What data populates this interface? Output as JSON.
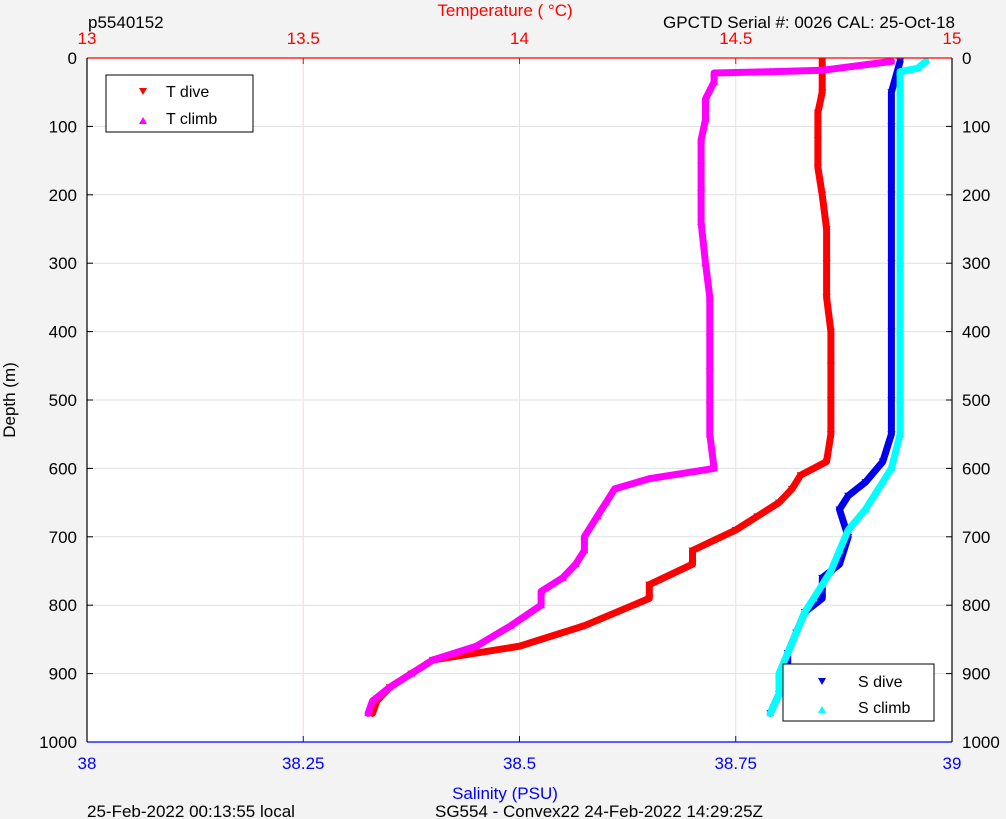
{
  "header": {
    "left_label": "p5540152",
    "right_label": "GPCTD Serial #: 0026 CAL: 25-Oct-18"
  },
  "footer": {
    "left_label": "25-Feb-2022 00:13:55 local",
    "center_label": "SG554 - Convex22 24-Feb-2022 14:29:25Z"
  },
  "chart_data": {
    "type": "scatter",
    "ylabel": "Depth (m)",
    "y_reversed": true,
    "ylim": [
      0,
      1000
    ],
    "yticks": [
      "0",
      "100",
      "200",
      "300",
      "400",
      "500",
      "600",
      "700",
      "800",
      "900",
      "1000"
    ],
    "grid": true,
    "top_axis": {
      "label": "Temperature (    °C)",
      "range": [
        13,
        15
      ],
      "ticks": [
        "13",
        "13.5",
        "14",
        "14.5",
        "15"
      ],
      "color": "#ff0000"
    },
    "bottom_axis": {
      "label": "Salinity (PSU)",
      "range": [
        38,
        39
      ],
      "ticks": [
        "38",
        "38.25",
        "38.5",
        "38.75",
        "39"
      ],
      "color": "#0000ff"
    },
    "legends": [
      {
        "position": "top-left",
        "entries": [
          "T dive",
          "T climb"
        ]
      },
      {
        "position": "bottom-right",
        "entries": [
          "S dive",
          "S climb"
        ]
      }
    ],
    "series": [
      {
        "name": "T dive",
        "axis": "temperature",
        "color": "#ff0000",
        "marker": "triangle-down",
        "points": [
          [
            14.7,
            5
          ],
          [
            14.7,
            20
          ],
          [
            14.7,
            50
          ],
          [
            14.69,
            80
          ],
          [
            14.69,
            120
          ],
          [
            14.69,
            160
          ],
          [
            14.7,
            200
          ],
          [
            14.71,
            250
          ],
          [
            14.71,
            300
          ],
          [
            14.71,
            350
          ],
          [
            14.72,
            400
          ],
          [
            14.72,
            450
          ],
          [
            14.72,
            500
          ],
          [
            14.72,
            550
          ],
          [
            14.71,
            590
          ],
          [
            14.65,
            610
          ],
          [
            14.63,
            630
          ],
          [
            14.6,
            650
          ],
          [
            14.55,
            670
          ],
          [
            14.5,
            690
          ],
          [
            14.4,
            720
          ],
          [
            14.4,
            740
          ],
          [
            14.3,
            770
          ],
          [
            14.3,
            790
          ],
          [
            14.15,
            830
          ],
          [
            14.0,
            860
          ],
          [
            13.8,
            880
          ],
          [
            13.75,
            900
          ],
          [
            13.7,
            920
          ],
          [
            13.67,
            940
          ],
          [
            13.66,
            958
          ]
        ]
      },
      {
        "name": "T climb",
        "axis": "temperature",
        "color": "#ff00ff",
        "marker": "triangle-up",
        "points": [
          [
            14.86,
            5
          ],
          [
            14.7,
            18
          ],
          [
            14.58,
            20
          ],
          [
            14.45,
            22
          ],
          [
            14.45,
            35
          ],
          [
            14.43,
            60
          ],
          [
            14.43,
            90
          ],
          [
            14.42,
            120
          ],
          [
            14.42,
            150
          ],
          [
            14.42,
            190
          ],
          [
            14.42,
            240
          ],
          [
            14.43,
            300
          ],
          [
            14.44,
            350
          ],
          [
            14.44,
            400
          ],
          [
            14.44,
            450
          ],
          [
            14.44,
            500
          ],
          [
            14.44,
            550
          ],
          [
            14.45,
            600
          ],
          [
            14.3,
            615
          ],
          [
            14.22,
            630
          ],
          [
            14.2,
            650
          ],
          [
            14.18,
            670
          ],
          [
            14.15,
            700
          ],
          [
            14.15,
            720
          ],
          [
            14.13,
            740
          ],
          [
            14.1,
            760
          ],
          [
            14.05,
            780
          ],
          [
            14.05,
            800
          ],
          [
            13.98,
            830
          ],
          [
            13.9,
            860
          ],
          [
            13.8,
            880
          ],
          [
            13.75,
            900
          ],
          [
            13.7,
            920
          ],
          [
            13.66,
            940
          ],
          [
            13.65,
            958
          ]
        ]
      },
      {
        "name": "S dive",
        "axis": "salinity",
        "color": "#0000ee",
        "marker": "triangle-down",
        "points": [
          [
            38.94,
            5
          ],
          [
            38.93,
            50
          ],
          [
            38.93,
            100
          ],
          [
            38.93,
            200
          ],
          [
            38.93,
            300
          ],
          [
            38.93,
            400
          ],
          [
            38.93,
            500
          ],
          [
            38.93,
            550
          ],
          [
            38.92,
            590
          ],
          [
            38.9,
            620
          ],
          [
            38.88,
            640
          ],
          [
            38.87,
            660
          ],
          [
            38.88,
            700
          ],
          [
            38.87,
            740
          ],
          [
            38.85,
            760
          ],
          [
            38.85,
            790
          ],
          [
            38.83,
            810
          ],
          [
            38.82,
            840
          ],
          [
            38.81,
            870
          ],
          [
            38.81,
            900
          ],
          [
            38.8,
            930
          ],
          [
            38.79,
            958
          ]
        ]
      },
      {
        "name": "S climb",
        "axis": "salinity",
        "color": "#00ffff",
        "marker": "triangle-up",
        "points": [
          [
            38.97,
            5
          ],
          [
            38.96,
            15
          ],
          [
            38.94,
            20
          ],
          [
            38.94,
            50
          ],
          [
            38.94,
            100
          ],
          [
            38.94,
            200
          ],
          [
            38.94,
            300
          ],
          [
            38.94,
            400
          ],
          [
            38.94,
            500
          ],
          [
            38.94,
            550
          ],
          [
            38.93,
            600
          ],
          [
            38.92,
            620
          ],
          [
            38.91,
            640
          ],
          [
            38.9,
            660
          ],
          [
            38.88,
            690
          ],
          [
            38.87,
            720
          ],
          [
            38.86,
            750
          ],
          [
            38.85,
            770
          ],
          [
            38.84,
            790
          ],
          [
            38.83,
            810
          ],
          [
            38.82,
            840
          ],
          [
            38.81,
            870
          ],
          [
            38.8,
            900
          ],
          [
            38.8,
            930
          ],
          [
            38.79,
            958
          ]
        ]
      }
    ]
  }
}
